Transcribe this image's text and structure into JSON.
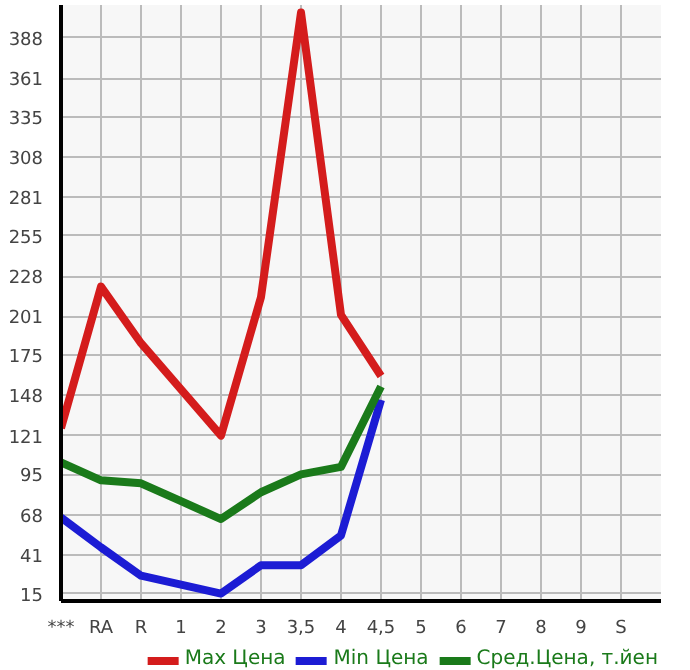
{
  "chart_data": {
    "type": "line",
    "categories": [
      "***",
      "RA",
      "R",
      "1",
      "2",
      "3",
      "3,5",
      "4",
      "4,5",
      "5",
      "6",
      "7",
      "8",
      "9",
      "S"
    ],
    "ylim": [
      10,
      410
    ],
    "yticks": [
      15,
      41,
      68,
      95,
      121,
      148,
      175,
      201,
      228,
      255,
      281,
      308,
      335,
      361,
      388
    ],
    "series": [
      {
        "name": "Max Цена",
        "color": "#d41c1c",
        "values": [
          126,
          221,
          183,
          152,
          121,
          214,
          405,
          202,
          161,
          null,
          null,
          null,
          null,
          null,
          null
        ]
      },
      {
        "name": "Min Цена",
        "color": "#1c1cd4",
        "values": [
          66,
          46,
          27,
          21,
          15,
          34,
          34,
          54,
          145,
          null,
          null,
          null,
          null,
          null,
          null
        ]
      },
      {
        "name": "Сред.Цена, т.йен",
        "color": "#1a7a1a",
        "values": [
          103,
          91,
          89,
          77,
          65,
          83,
          95,
          100,
          154,
          null,
          null,
          null,
          null,
          null,
          null
        ]
      }
    ],
    "grid": true,
    "legend": "bottom",
    "line_style": "solid",
    "marker": "none"
  }
}
